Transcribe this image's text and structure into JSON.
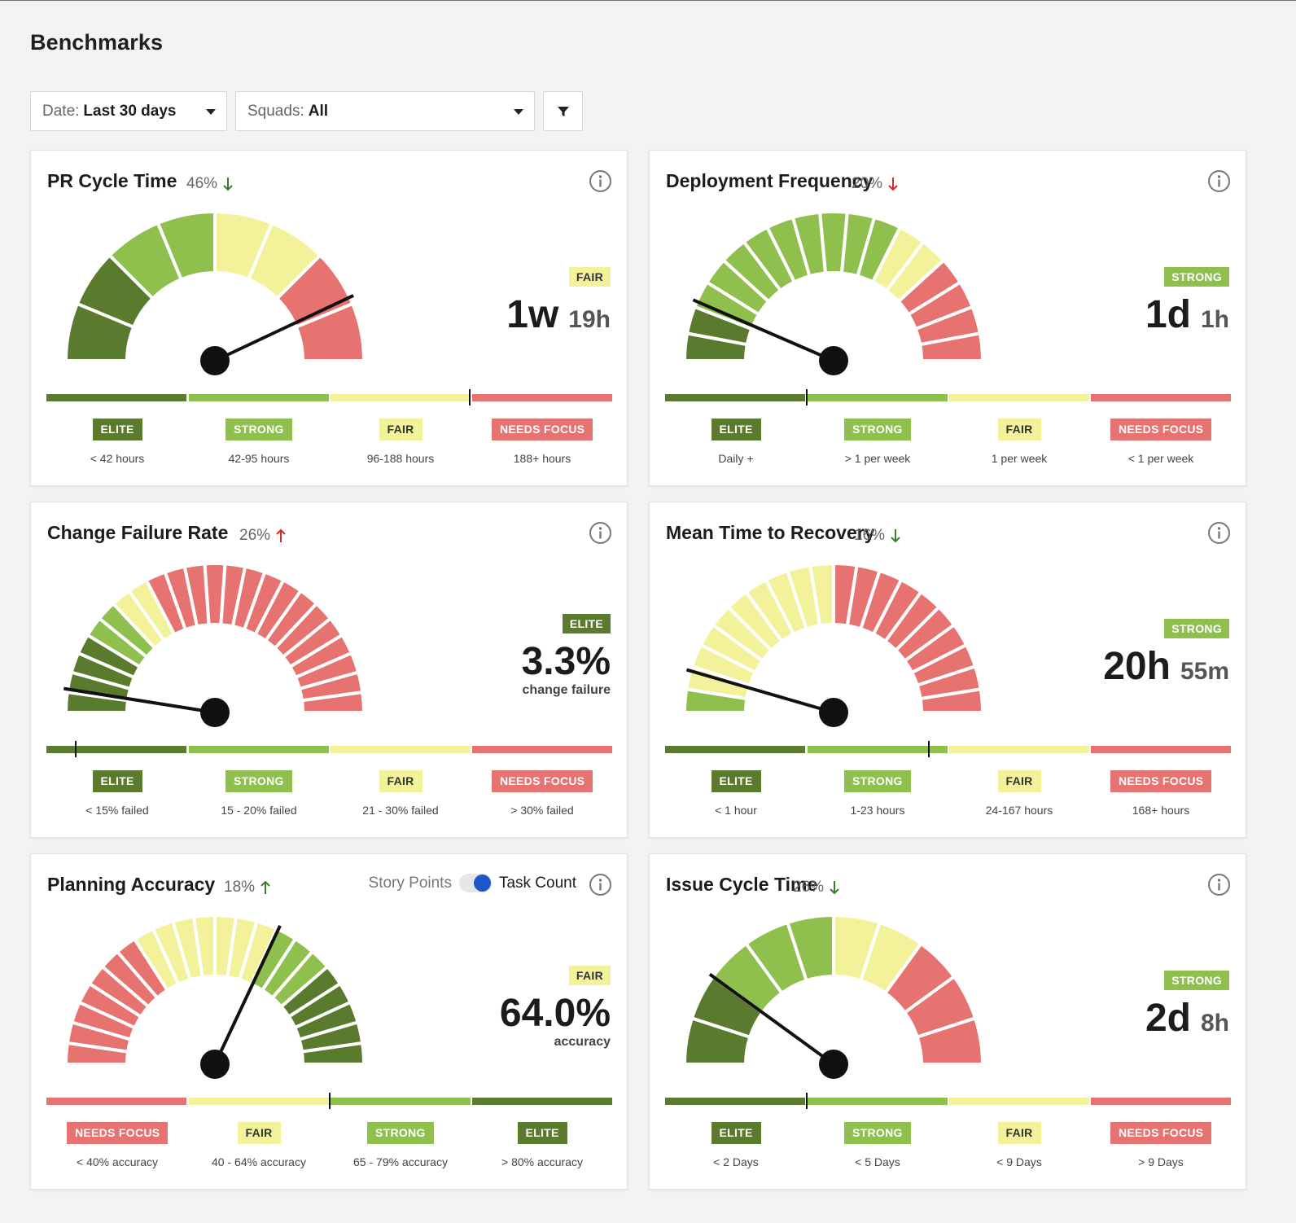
{
  "page": {
    "title": "Benchmarks"
  },
  "filters": {
    "date": {
      "label": "Date:",
      "value": "Last 30 days"
    },
    "squads": {
      "label": "Squads:",
      "value": "All"
    },
    "filter_icon": "filter-funnel-icon"
  },
  "colors": {
    "elite": "#5a7a2e",
    "strong": "#8fc04e",
    "fair": "#f3f29b",
    "needs_focus": "#e77370",
    "up_bad": "#d22b2b",
    "down_good": "#3c7a2f",
    "toggle_knob": "#1f55c7"
  },
  "cards": [
    {
      "title": "PR Cycle Time",
      "change": "46%",
      "trend": "down",
      "trend_color": "good",
      "status": "FAIR",
      "value_main": "1w",
      "value_secondary": "19h",
      "value_sub": "",
      "needle_value": 0.86,
      "distribution": [
        {
          "tier": "elite",
          "share": 0.22
        },
        {
          "tier": "strong",
          "share": 0.22
        },
        {
          "tier": "fair",
          "share": 0.36
        },
        {
          "tier": "needs_focus",
          "share": 0.2
        }
      ],
      "segments": 8,
      "scale_order": [
        "elite",
        "strong",
        "fair",
        "needs_focus"
      ],
      "marker_value": 0.745,
      "tiers": [
        {
          "label": "ELITE",
          "range": "< 42 hours"
        },
        {
          "label": "STRONG",
          "range": "42-95 hours"
        },
        {
          "label": "FAIR",
          "range": "96-188 hours"
        },
        {
          "label": "NEEDS FOCUS",
          "range": "188+ hours"
        }
      ]
    },
    {
      "title": "Deployment Frequency",
      "change": "20%",
      "trend": "down",
      "trend_color": "bad",
      "status": "STRONG",
      "value_main": "1d",
      "value_secondary": "1h",
      "value_sub": "",
      "needle_value": 0.13,
      "distribution": [
        {
          "tier": "elite",
          "share": 0.12
        },
        {
          "tier": "strong",
          "share": 0.52
        },
        {
          "tier": "fair",
          "share": 0.12
        },
        {
          "tier": "needs_focus",
          "share": 0.24
        }
      ],
      "segments": 17,
      "scale_order": [
        "elite",
        "strong",
        "fair",
        "needs_focus"
      ],
      "marker_value": 0.248,
      "tiers": [
        {
          "label": "ELITE",
          "range": "Daily +"
        },
        {
          "label": "STRONG",
          "range": "> 1 per week"
        },
        {
          "label": "FAIR",
          "range": "1 per week"
        },
        {
          "label": "NEEDS FOCUS",
          "range": "< 1 per week"
        }
      ]
    },
    {
      "title": "Change Failure Rate",
      "change": "26%",
      "trend": "up",
      "trend_color": "bad",
      "status": "ELITE",
      "value_main": "3.3%",
      "value_secondary": "",
      "value_sub": "change failure",
      "needle_value": 0.05,
      "distribution": [
        {
          "tier": "elite",
          "share": 0.18
        },
        {
          "tier": "strong",
          "share": 0.07
        },
        {
          "tier": "fair",
          "share": 0.1
        },
        {
          "tier": "needs_focus",
          "share": 0.65
        }
      ],
      "segments": 23,
      "scale_order": [
        "elite",
        "strong",
        "fair",
        "needs_focus"
      ],
      "marker_value": 0.05,
      "tiers": [
        {
          "label": "ELITE",
          "range": "< 15% failed"
        },
        {
          "label": "STRONG",
          "range": "15 - 20% failed"
        },
        {
          "label": "FAIR",
          "range": "21 - 30% failed"
        },
        {
          "label": "NEEDS FOCUS",
          "range": "> 30% failed"
        }
      ]
    },
    {
      "title": "Mean Time to Recovery",
      "change": "16%",
      "trend": "down",
      "trend_color": "good",
      "status": "STRONG",
      "value_main": "20h",
      "value_secondary": "55m",
      "value_sub": "",
      "needle_value": 0.09,
      "distribution": [
        {
          "tier": "elite",
          "share": 0.0
        },
        {
          "tier": "strong",
          "share": 0.06
        },
        {
          "tier": "fair",
          "share": 0.44
        },
        {
          "tier": "needs_focus",
          "share": 0.5
        }
      ],
      "segments": 20,
      "scale_order": [
        "elite",
        "strong",
        "fair",
        "needs_focus"
      ],
      "marker_value": 0.464,
      "tiers": [
        {
          "label": "ELITE",
          "range": "< 1 hour"
        },
        {
          "label": "STRONG",
          "range": "1-23 hours"
        },
        {
          "label": "FAIR",
          "range": "24-167 hours"
        },
        {
          "label": "NEEDS FOCUS",
          "range": "168+ hours"
        }
      ]
    },
    {
      "title": "Planning Accuracy",
      "change": "18%",
      "trend": "up",
      "trend_color": "good",
      "status": "FAIR",
      "value_main": "64.0%",
      "value_secondary": "",
      "value_sub": "accuracy",
      "needle_value": 0.64,
      "toggle": {
        "option_left": "Story Points",
        "option_right": "Task Count",
        "selected": "Task Count"
      },
      "distribution": [
        {
          "tier": "needs_focus",
          "share": 0.32
        },
        {
          "tier": "fair",
          "share": 0.3
        },
        {
          "tier": "strong",
          "share": 0.14
        },
        {
          "tier": "elite",
          "share": 0.24
        }
      ],
      "segments": 22,
      "scale_order": [
        "needs_focus",
        "fair",
        "strong",
        "elite"
      ],
      "marker_value": 0.498,
      "tiers": [
        {
          "label": "NEEDS FOCUS",
          "range": "< 40% accuracy"
        },
        {
          "label": "FAIR",
          "range": "40 - 64% accuracy"
        },
        {
          "label": "STRONG",
          "range": "65 - 79% accuracy"
        },
        {
          "label": "ELITE",
          "range": "> 80% accuracy"
        }
      ]
    },
    {
      "title": "Issue Cycle Time",
      "change": "26%",
      "trend": "down",
      "trend_color": "good",
      "status": "STRONG",
      "value_main": "2d",
      "value_secondary": "8h",
      "value_sub": "",
      "needle_value": 0.2,
      "distribution": [
        {
          "tier": "elite",
          "share": 0.18
        },
        {
          "tier": "strong",
          "share": 0.29
        },
        {
          "tier": "fair",
          "share": 0.26
        },
        {
          "tier": "needs_focus",
          "share": 0.27
        }
      ],
      "segments": 10,
      "scale_order": [
        "elite",
        "strong",
        "fair",
        "needs_focus"
      ],
      "marker_value": 0.248,
      "tiers": [
        {
          "label": "ELITE",
          "range": "< 2 Days"
        },
        {
          "label": "STRONG",
          "range": "< 5 Days"
        },
        {
          "label": "FAIR",
          "range": "< 9 Days"
        },
        {
          "label": "NEEDS FOCUS",
          "range": "> 9 Days"
        }
      ]
    }
  ]
}
